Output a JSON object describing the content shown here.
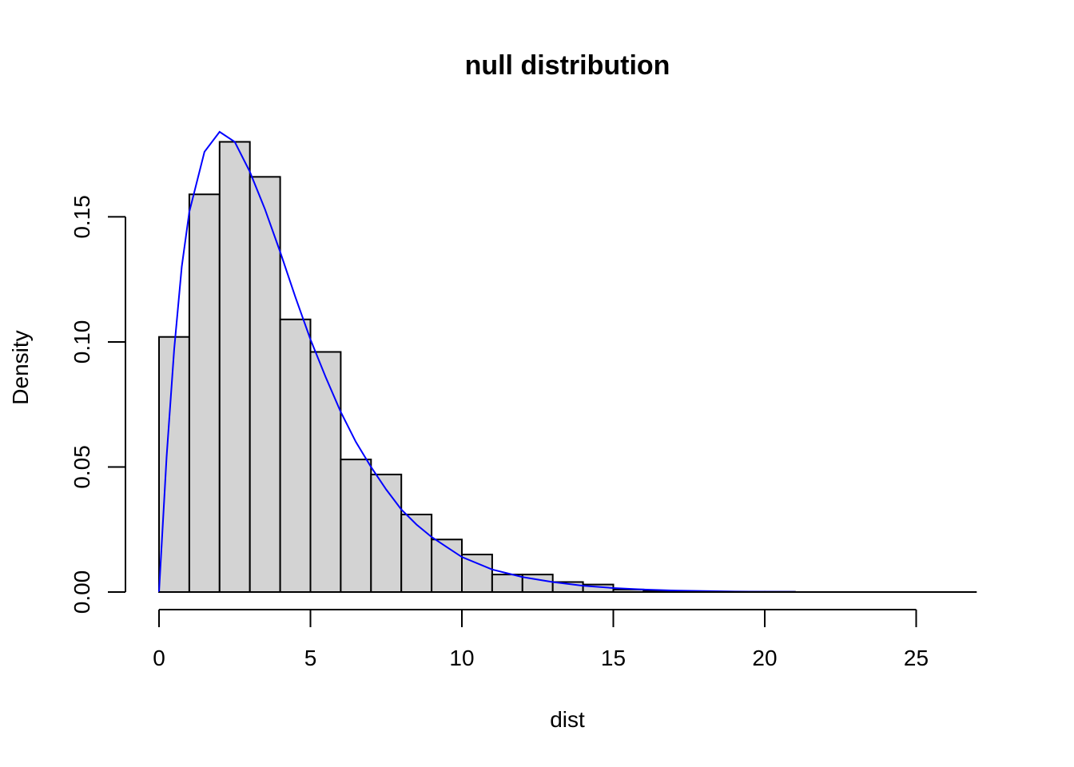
{
  "chart_data": {
    "type": "bar",
    "title": "null distribution",
    "xlabel": "dist",
    "ylabel": "Density",
    "xlim": [
      0,
      27
    ],
    "ylim": [
      0,
      0.185
    ],
    "x_ticks": [
      0,
      5,
      10,
      15,
      20,
      25
    ],
    "x_tick_labels": [
      "0",
      "5",
      "10",
      "15",
      "20",
      "25"
    ],
    "y_ticks": [
      0,
      0.05,
      0.1,
      0.15
    ],
    "y_tick_labels": [
      "0.00",
      "0.05",
      "0.10",
      "0.15"
    ],
    "bins": [
      {
        "x0": 0,
        "x1": 1,
        "density": 0.102
      },
      {
        "x0": 1,
        "x1": 2,
        "density": 0.159
      },
      {
        "x0": 2,
        "x1": 3,
        "density": 0.18
      },
      {
        "x0": 3,
        "x1": 4,
        "density": 0.166
      },
      {
        "x0": 4,
        "x1": 5,
        "density": 0.109
      },
      {
        "x0": 5,
        "x1": 6,
        "density": 0.096
      },
      {
        "x0": 6,
        "x1": 7,
        "density": 0.053
      },
      {
        "x0": 7,
        "x1": 8,
        "density": 0.047
      },
      {
        "x0": 8,
        "x1": 9,
        "density": 0.031
      },
      {
        "x0": 9,
        "x1": 10,
        "density": 0.021
      },
      {
        "x0": 10,
        "x1": 11,
        "density": 0.015
      },
      {
        "x0": 11,
        "x1": 12,
        "density": 0.007
      },
      {
        "x0": 12,
        "x1": 13,
        "density": 0.007
      },
      {
        "x0": 13,
        "x1": 14,
        "density": 0.004
      },
      {
        "x0": 14,
        "x1": 15,
        "density": 0.003
      },
      {
        "x0": 15,
        "x1": 16,
        "density": 0.001
      },
      {
        "x0": 16,
        "x1": 17,
        "density": 0.0005
      },
      {
        "x0": 17,
        "x1": 18,
        "density": 0.0003
      },
      {
        "x0": 18,
        "x1": 19,
        "density": 0.0001
      },
      {
        "x0": 19,
        "x1": 20,
        "density": 0.0001
      },
      {
        "x0": 20,
        "x1": 21,
        "density": 0.0001
      },
      {
        "x0": 21,
        "x1": 22,
        "density": 0.0
      },
      {
        "x0": 22,
        "x1": 23,
        "density": 0.0
      },
      {
        "x0": 23,
        "x1": 24,
        "density": 0.0
      },
      {
        "x0": 24,
        "x1": 25,
        "density": 0.0
      },
      {
        "x0": 25,
        "x1": 26,
        "density": 0.0
      },
      {
        "x0": 26,
        "x1": 27,
        "density": 0.0
      }
    ],
    "density_curve": {
      "x": [
        0,
        0.25,
        0.5,
        0.75,
        1,
        1.5,
        2,
        2.5,
        3,
        3.5,
        4,
        4.5,
        5,
        5.5,
        6,
        6.5,
        7,
        7.5,
        8,
        8.5,
        9,
        9.5,
        10,
        11,
        12,
        13,
        14,
        15,
        16,
        17,
        18,
        19,
        20,
        21
      ],
      "y": [
        0,
        0.054,
        0.097,
        0.13,
        0.152,
        0.176,
        0.184,
        0.18,
        0.168,
        0.153,
        0.136,
        0.118,
        0.101,
        0.086,
        0.072,
        0.06,
        0.05,
        0.041,
        0.033,
        0.027,
        0.022,
        0.018,
        0.014,
        0.009,
        0.006,
        0.004,
        0.0025,
        0.0016,
        0.001,
        0.0006,
        0.0004,
        0.0002,
        0.0001,
        7e-05
      ]
    },
    "bar_fill": "#d3d3d3",
    "bar_stroke": "#000000",
    "curve_color": "#0000ff",
    "grid": false,
    "legend": "none"
  }
}
